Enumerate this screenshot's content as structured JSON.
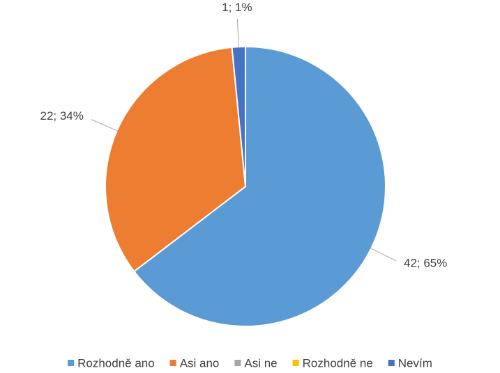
{
  "chart_data": {
    "type": "pie",
    "categories": [
      "Rozhodně ano",
      "Asi ano",
      "Asi ne",
      "Rozhodně ne",
      "Nevím"
    ],
    "values": [
      42,
      22,
      0,
      0,
      1
    ],
    "value_labels": [
      "42; 65%",
      "22; 34%",
      null,
      null,
      "1; 1%"
    ],
    "colors": [
      "#5b9bd5",
      "#ed7d31",
      "#a5a5a5",
      "#ffc000",
      "#4472c4"
    ],
    "legend": "bottom"
  }
}
